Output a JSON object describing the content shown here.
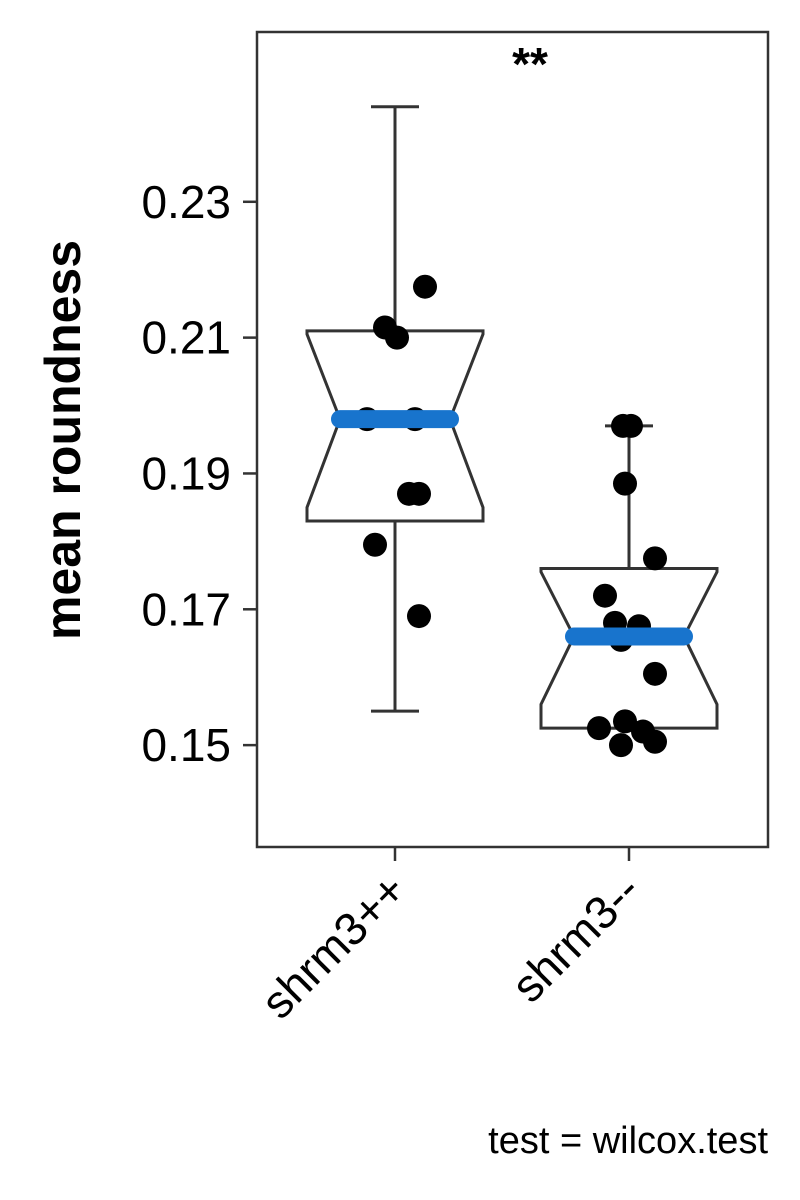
{
  "chart_data": {
    "type": "box",
    "ylabel": "mean roundness",
    "xlabel": "",
    "ylim": [
      0.135,
      0.255
    ],
    "yticks": [
      0.15,
      0.17,
      0.19,
      0.21,
      0.23
    ],
    "ytick_labels": [
      "0.15",
      "0.17",
      "0.19",
      "0.21",
      "0.23"
    ],
    "categories": [
      "shrm3++",
      "shrm3--"
    ],
    "notched": true,
    "median_color": "#1874CD",
    "point_color": "#000000",
    "boxes": [
      {
        "category": "shrm3++",
        "whisker_low": 0.155,
        "q1": 0.183,
        "median": 0.198,
        "q3": 0.211,
        "whisker_high": 0.244,
        "notch_low": 0.185,
        "notch_high": 0.2105,
        "points": [
          {
            "offset": -0.05,
            "y": 0.2115
          },
          {
            "offset": 0.01,
            "y": 0.21
          },
          {
            "offset": 0.15,
            "y": 0.2175
          },
          {
            "offset": -0.14,
            "y": 0.198
          },
          {
            "offset": 0.1,
            "y": 0.198
          },
          {
            "offset": 0.07,
            "y": 0.187
          },
          {
            "offset": 0.12,
            "y": 0.187
          },
          {
            "offset": -0.1,
            "y": 0.1795
          },
          {
            "offset": 0.12,
            "y": 0.169
          }
        ]
      },
      {
        "category": "shrm3--",
        "whisker_low": 0.1525,
        "q1": 0.1525,
        "median": 0.166,
        "q3": 0.176,
        "whisker_high": 0.197,
        "notch_low": 0.156,
        "notch_high": 0.1755,
        "points": [
          {
            "offset": -0.03,
            "y": 0.197
          },
          {
            "offset": 0.01,
            "y": 0.197
          },
          {
            "offset": -0.02,
            "y": 0.1885
          },
          {
            "offset": 0.13,
            "y": 0.1775
          },
          {
            "offset": -0.12,
            "y": 0.172
          },
          {
            "offset": -0.07,
            "y": 0.168
          },
          {
            "offset": 0.05,
            "y": 0.1675
          },
          {
            "offset": -0.04,
            "y": 0.1655
          },
          {
            "offset": 0.13,
            "y": 0.1605
          },
          {
            "offset": -0.15,
            "y": 0.1525
          },
          {
            "offset": -0.02,
            "y": 0.1535
          },
          {
            "offset": 0.07,
            "y": 0.152
          },
          {
            "offset": -0.04,
            "y": 0.15
          },
          {
            "offset": 0.13,
            "y": 0.1505
          }
        ]
      }
    ],
    "significance": "**",
    "caption": "test = wilcox.test"
  }
}
